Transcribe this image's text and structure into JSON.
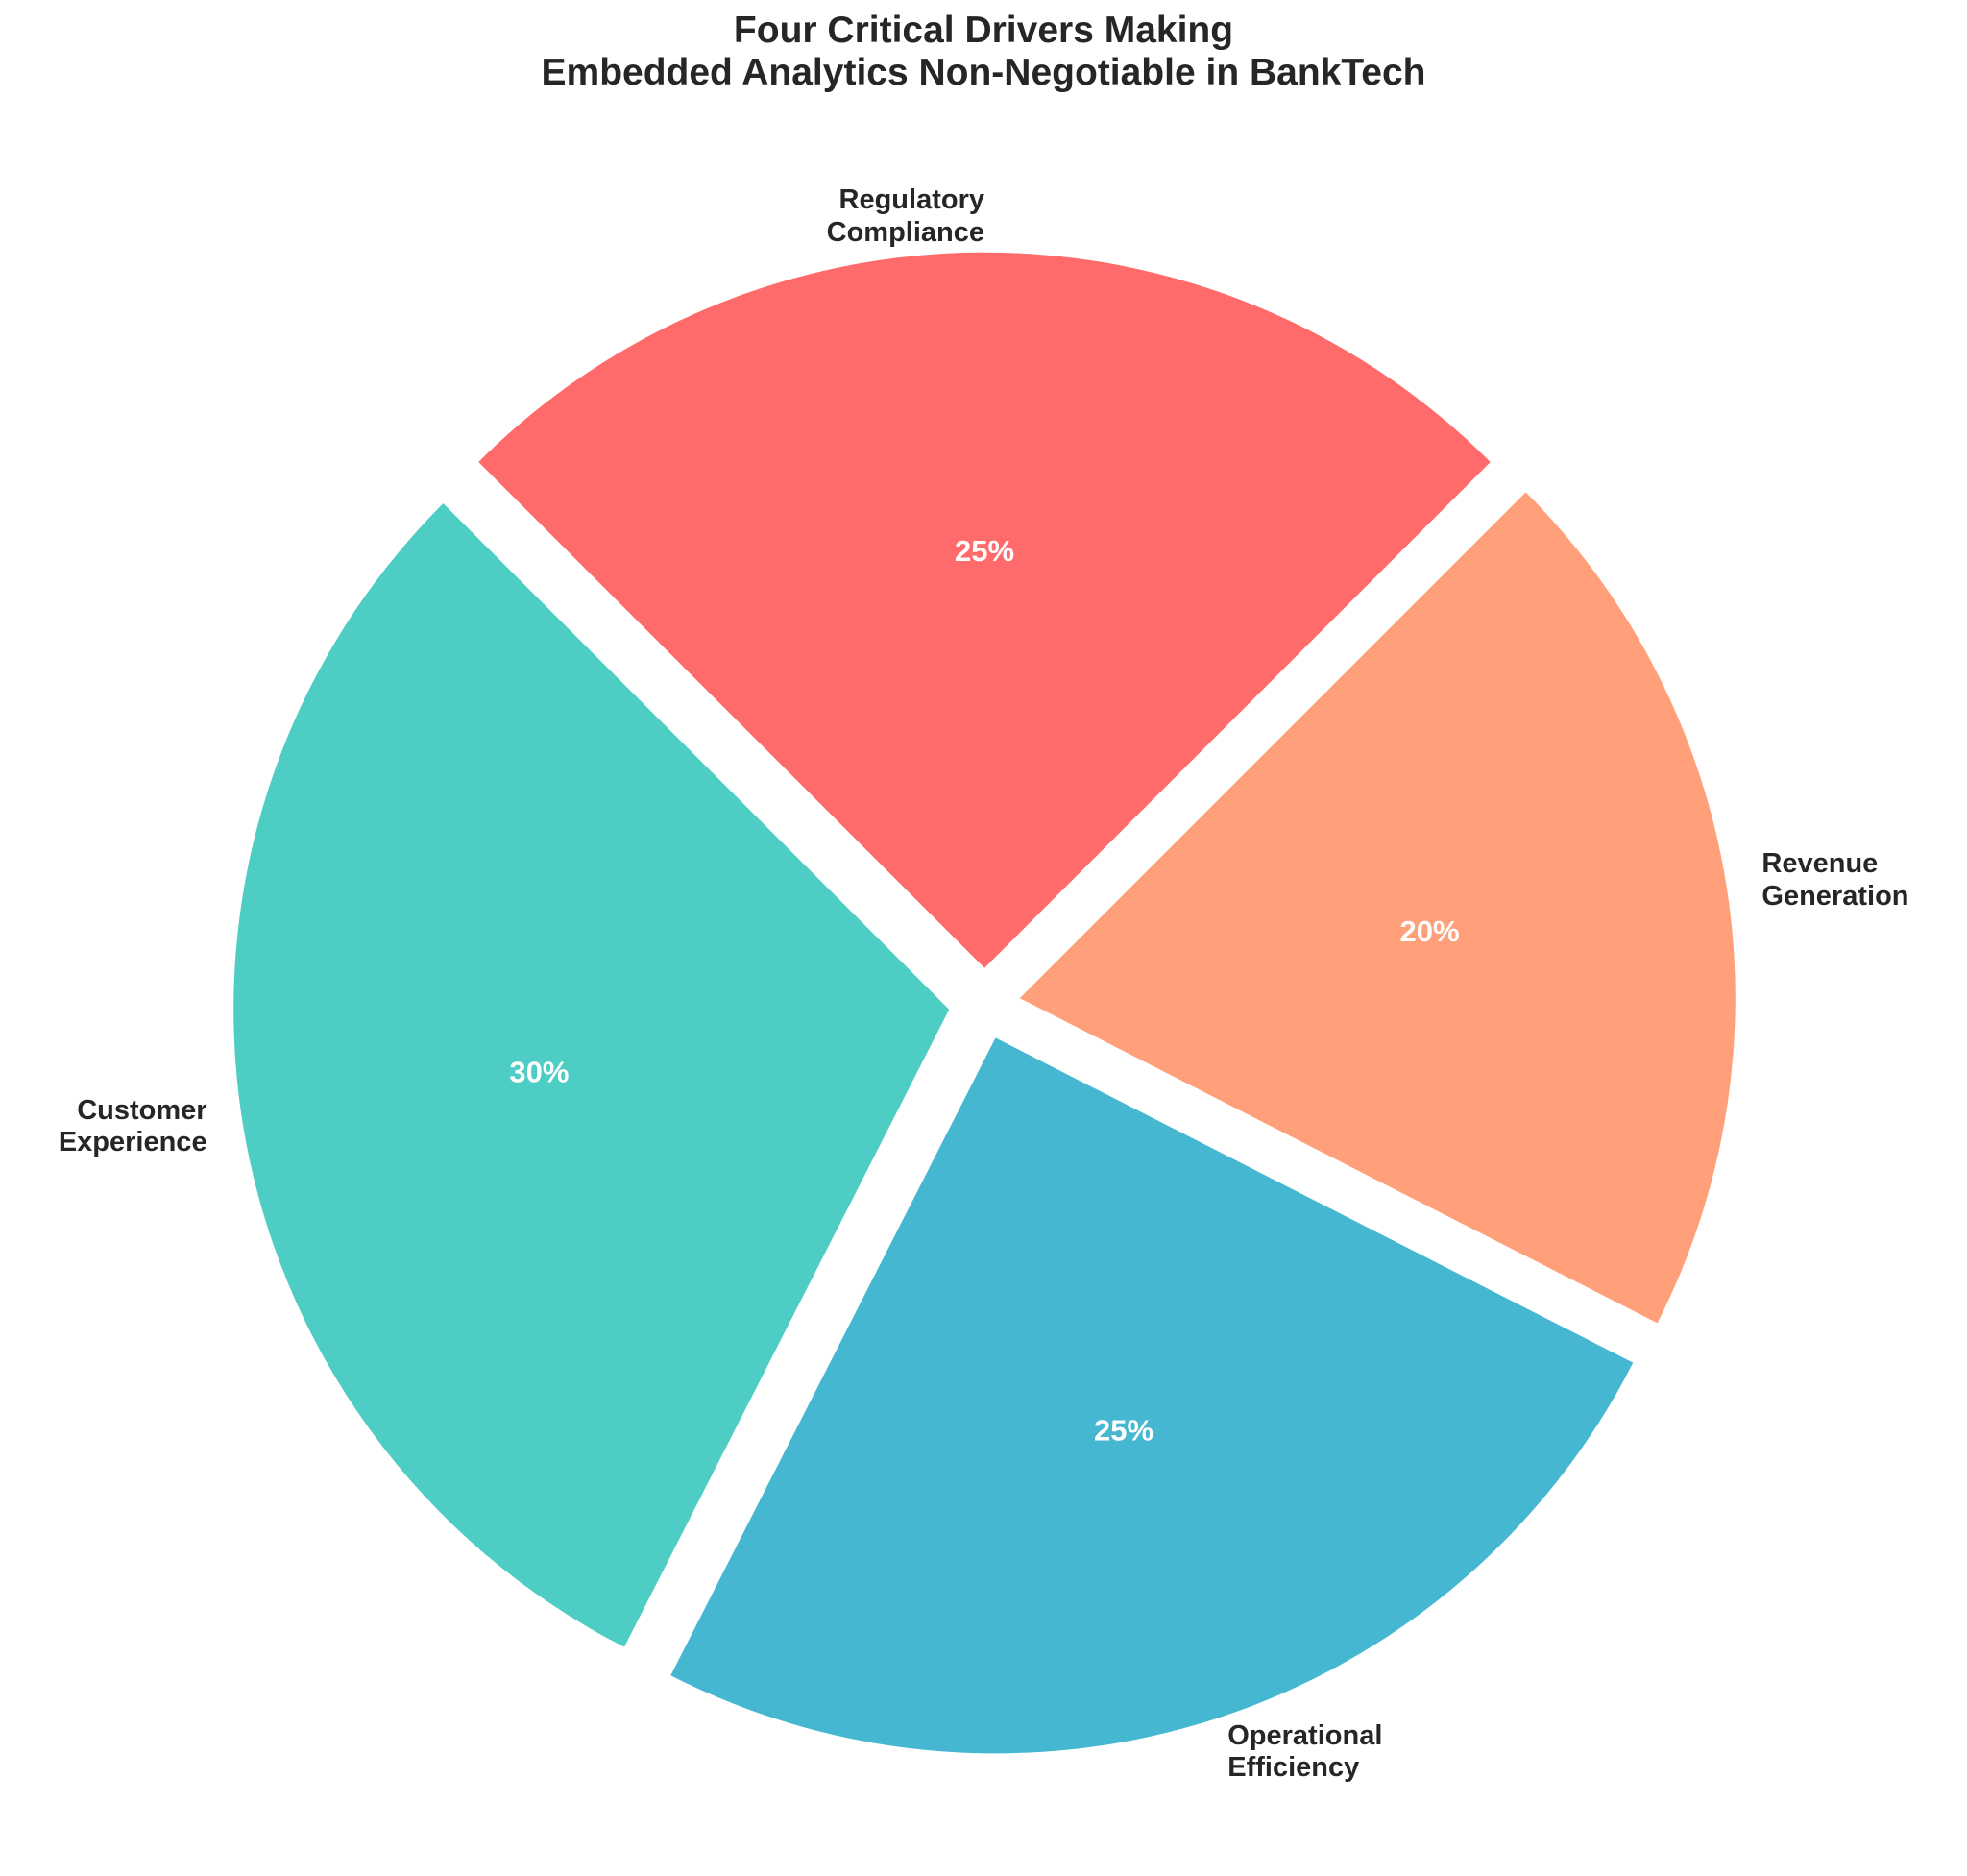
{
  "chart_data": {
    "type": "pie",
    "title": "Four Critical Drivers Making\nEmbedded Analytics Non-Negotiable in BankTech",
    "categories": [
      "Regulatory\nCompliance",
      "Customer\nExperience",
      "Operational\nEfficiency",
      "Revenue\nGeneration"
    ],
    "values": [
      25,
      30,
      25,
      20
    ],
    "value_labels": [
      "25%",
      "30%",
      "25%",
      "20%"
    ],
    "colors": [
      "#FF6B6B",
      "#4ECDC4",
      "#45B7D1",
      "#FFA07A"
    ]
  }
}
